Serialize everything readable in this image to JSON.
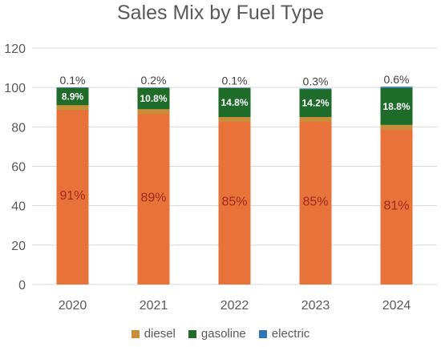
{
  "chart_data": {
    "type": "bar",
    "stacked": true,
    "title": "Sales Mix by Fuel Type",
    "categories": [
      "2020",
      "2021",
      "2022",
      "2023",
      "2024"
    ],
    "series": [
      {
        "name": "diesel",
        "color": "#c88e3a",
        "values": [
          91,
          89,
          85,
          85,
          81
        ],
        "labels": [
          "91%",
          "89%",
          "85%",
          "85%",
          "81%"
        ]
      },
      {
        "name": "gasoline",
        "color": "#1e6b2a",
        "values": [
          8.9,
          10.8,
          14.8,
          14.2,
          18.8
        ],
        "labels": [
          "8.9%",
          "10.8%",
          "14.8%",
          "14.2%",
          "18.8%"
        ]
      },
      {
        "name": "electric",
        "color": "#2e75b6",
        "values": [
          0.1,
          0.2,
          0.1,
          0.3,
          0.6
        ],
        "labels": [
          "0.1%",
          "0.2%",
          "0.1%",
          "0.3%",
          "0.6%"
        ]
      }
    ],
    "bar_fill_color": "#e8733a",
    "ylim": [
      0,
      120
    ],
    "yticks": [
      "0",
      "20",
      "40",
      "60",
      "80",
      "100",
      "120"
    ],
    "grid": true,
    "legend_position": "bottom"
  }
}
